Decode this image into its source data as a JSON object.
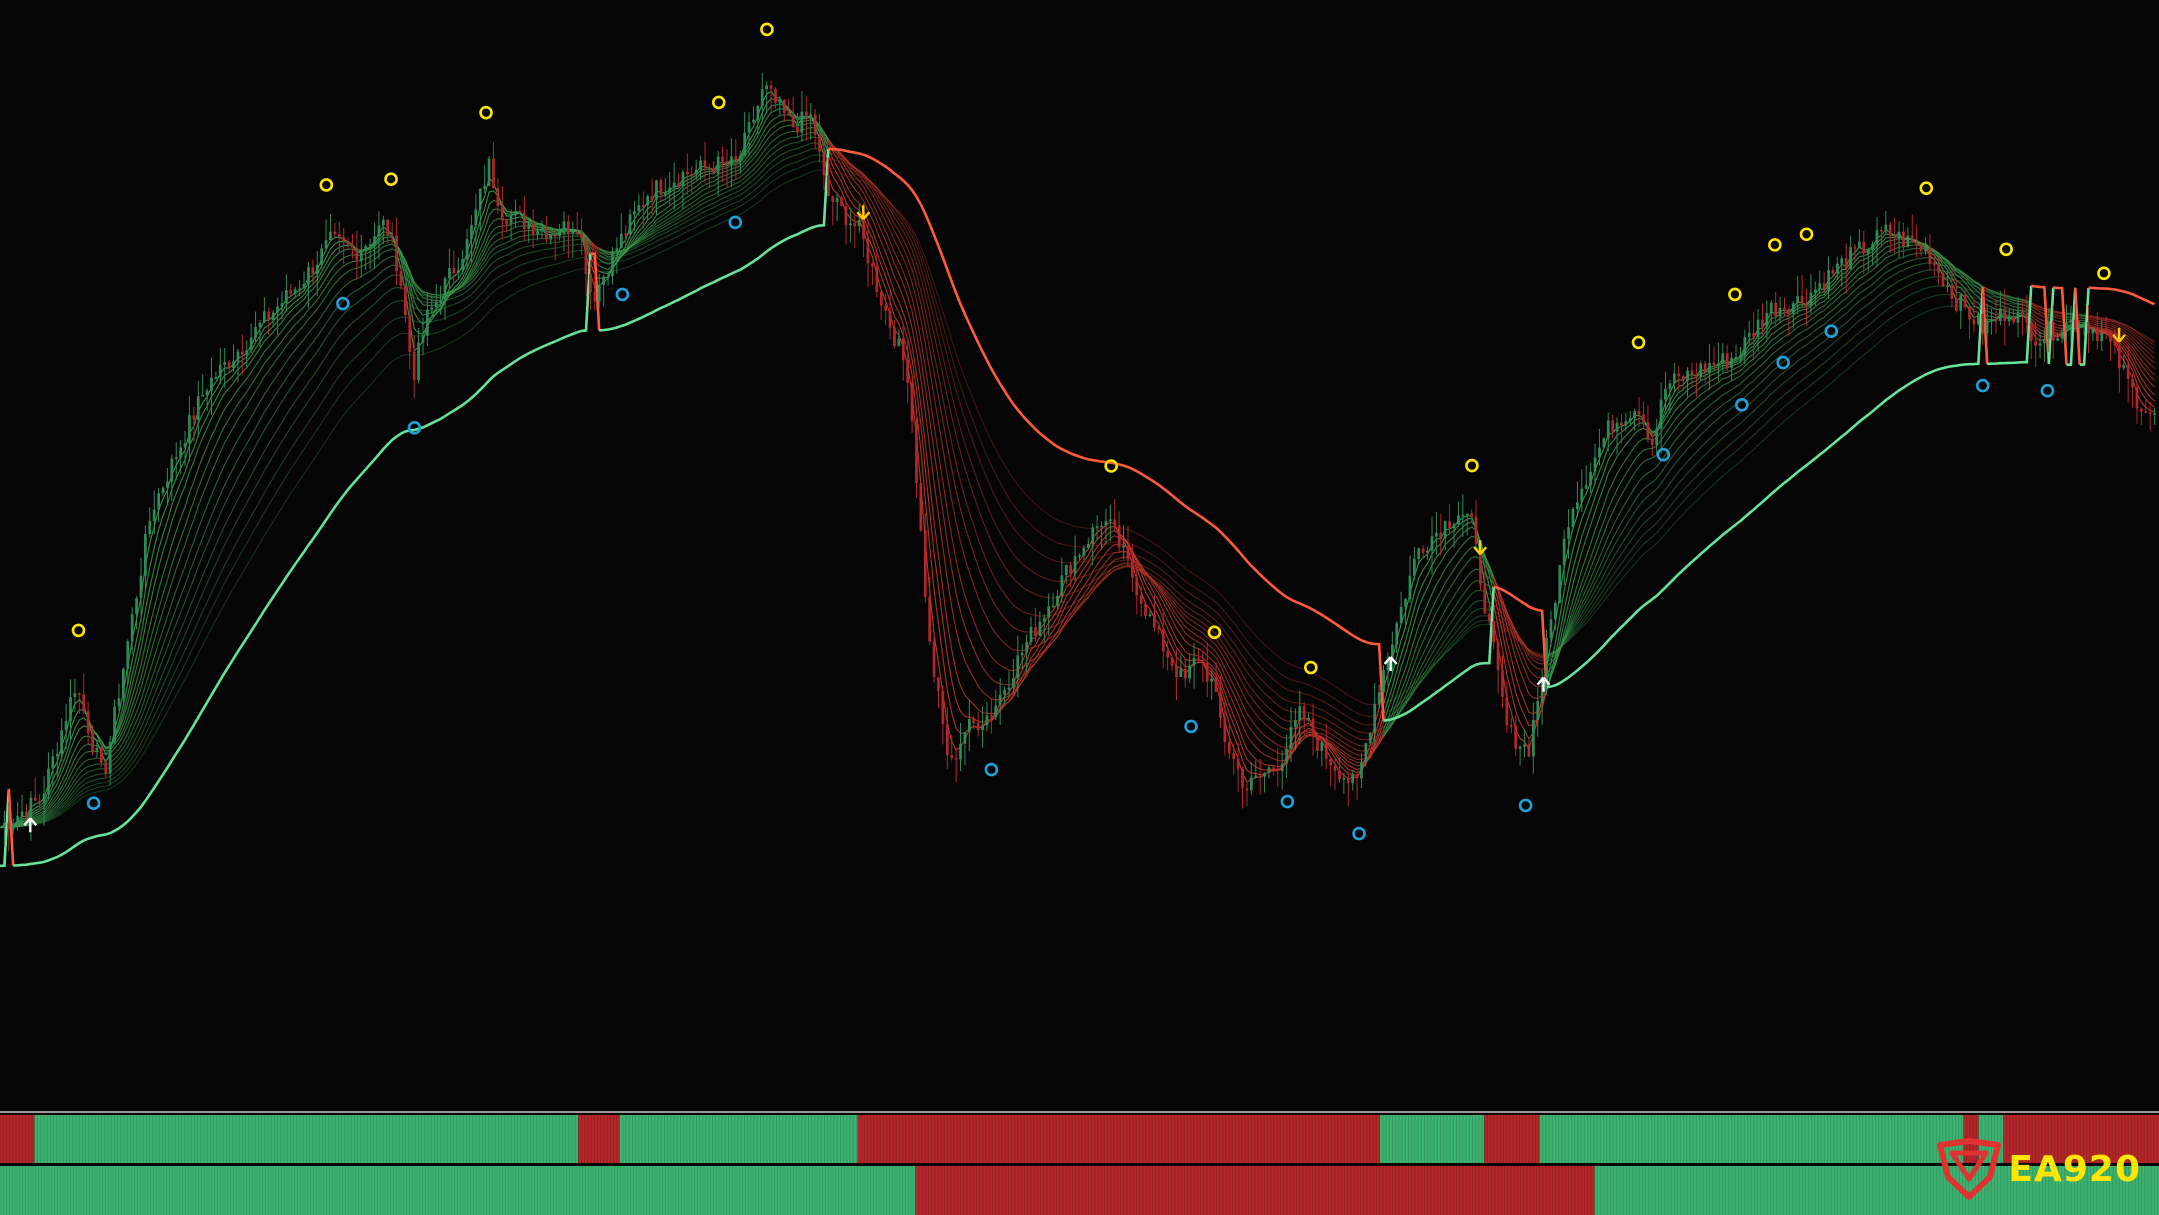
{
  "brand": {
    "name": "EA920",
    "logo_color": "#e0332f",
    "text_color": "#ffe600"
  },
  "colors": {
    "background": "#050505",
    "bull": "#2e8b57",
    "bear": "#b3262a",
    "ribbon_up": "#3a9a4a",
    "ribbon_down": "#c0392b",
    "slow_line_up": "#66e39a",
    "slow_line_down": "#ff5a3c",
    "top_signal": "#ffe600",
    "bottom_signal": "#1fa0d8",
    "entry_arrow": "#ffffff",
    "exit_arrow": "#ffcc00",
    "strip_up": "#3cb371",
    "strip_down": "#b3262a"
  },
  "chart_data": {
    "type": "candlestick",
    "title": "",
    "xlabel": "",
    "ylabel": "",
    "grid": false,
    "legend": "none",
    "ylim": [
      0,
      100
    ],
    "price_path": [
      [
        0,
        18
      ],
      [
        30,
        21
      ],
      [
        55,
        33
      ],
      [
        75,
        23
      ],
      [
        110,
        51
      ],
      [
        150,
        64
      ],
      [
        200,
        72
      ],
      [
        220,
        75
      ],
      [
        240,
        79
      ],
      [
        260,
        78
      ],
      [
        280,
        81
      ],
      [
        290,
        76
      ],
      [
        300,
        65
      ],
      [
        310,
        71
      ],
      [
        340,
        79
      ],
      [
        355,
        87
      ],
      [
        365,
        82
      ],
      [
        400,
        80
      ],
      [
        420,
        81
      ],
      [
        430,
        73
      ],
      [
        450,
        79
      ],
      [
        470,
        84
      ],
      [
        495,
        86
      ],
      [
        520,
        87
      ],
      [
        535,
        87
      ],
      [
        555,
        95
      ],
      [
        575,
        91
      ],
      [
        590,
        92
      ],
      [
        600,
        84
      ],
      [
        625,
        80
      ],
      [
        640,
        73
      ],
      [
        660,
        65
      ],
      [
        675,
        37
      ],
      [
        690,
        24
      ],
      [
        700,
        28
      ],
      [
        720,
        30
      ],
      [
        745,
        37
      ],
      [
        780,
        46
      ],
      [
        800,
        50
      ],
      [
        808,
        49
      ],
      [
        820,
        45
      ],
      [
        840,
        38
      ],
      [
        860,
        33
      ],
      [
        870,
        36
      ],
      [
        880,
        33
      ],
      [
        890,
        27
      ],
      [
        905,
        22
      ],
      [
        930,
        25
      ],
      [
        945,
        30
      ],
      [
        960,
        26
      ],
      [
        985,
        22
      ],
      [
        1000,
        32
      ],
      [
        1030,
        47
      ],
      [
        1060,
        51
      ],
      [
        1068,
        50
      ],
      [
        1080,
        40
      ],
      [
        1095,
        28
      ],
      [
        1110,
        26
      ],
      [
        1120,
        34
      ],
      [
        1140,
        51
      ],
      [
        1170,
        60
      ],
      [
        1190,
        62
      ],
      [
        1200,
        58
      ],
      [
        1210,
        64
      ],
      [
        1240,
        66
      ],
      [
        1260,
        67
      ],
      [
        1285,
        72
      ],
      [
        1310,
        73
      ],
      [
        1340,
        77
      ],
      [
        1370,
        80
      ],
      [
        1400,
        78
      ],
      [
        1420,
        73
      ],
      [
        1440,
        70
      ],
      [
        1460,
        72
      ],
      [
        1480,
        69
      ],
      [
        1510,
        71
      ],
      [
        1530,
        69
      ],
      [
        1550,
        63
      ],
      [
        1568,
        60
      ]
    ],
    "top_signals_x": [
      57,
      237,
      284,
      353,
      522,
      557,
      807,
      882,
      952,
      1069,
      1190,
      1260,
      1289,
      1312,
      1399,
      1457,
      1528
    ],
    "bottom_signals_x": [
      68,
      249,
      301,
      452,
      534,
      720,
      865,
      935,
      987,
      1108,
      1208,
      1265,
      1295,
      1330,
      1440,
      1487
    ],
    "entry_arrows_x": [
      22,
      1010,
      1121
    ],
    "exit_arrows_x": [
      627,
      1075,
      1539
    ],
    "trend_strip_1": [
      {
        "from": 0,
        "to": 25,
        "trend": "down"
      },
      {
        "from": 25,
        "to": 420,
        "trend": "up"
      },
      {
        "from": 420,
        "to": 450,
        "trend": "down"
      },
      {
        "from": 450,
        "to": 623,
        "trend": "up"
      },
      {
        "from": 623,
        "to": 1002,
        "trend": "down"
      },
      {
        "from": 1002,
        "to": 1078,
        "trend": "up"
      },
      {
        "from": 1078,
        "to": 1118,
        "trend": "down"
      },
      {
        "from": 1118,
        "to": 1426,
        "trend": "up"
      },
      {
        "from": 1426,
        "to": 1437,
        "trend": "down"
      },
      {
        "from": 1437,
        "to": 1455,
        "trend": "up"
      },
      {
        "from": 1455,
        "to": 1568,
        "trend": "down"
      }
    ],
    "trend_strip_2": [
      {
        "from": 0,
        "to": 665,
        "trend": "up"
      },
      {
        "from": 665,
        "to": 1158,
        "trend": "down"
      },
      {
        "from": 1158,
        "to": 1568,
        "trend": "up"
      }
    ]
  }
}
